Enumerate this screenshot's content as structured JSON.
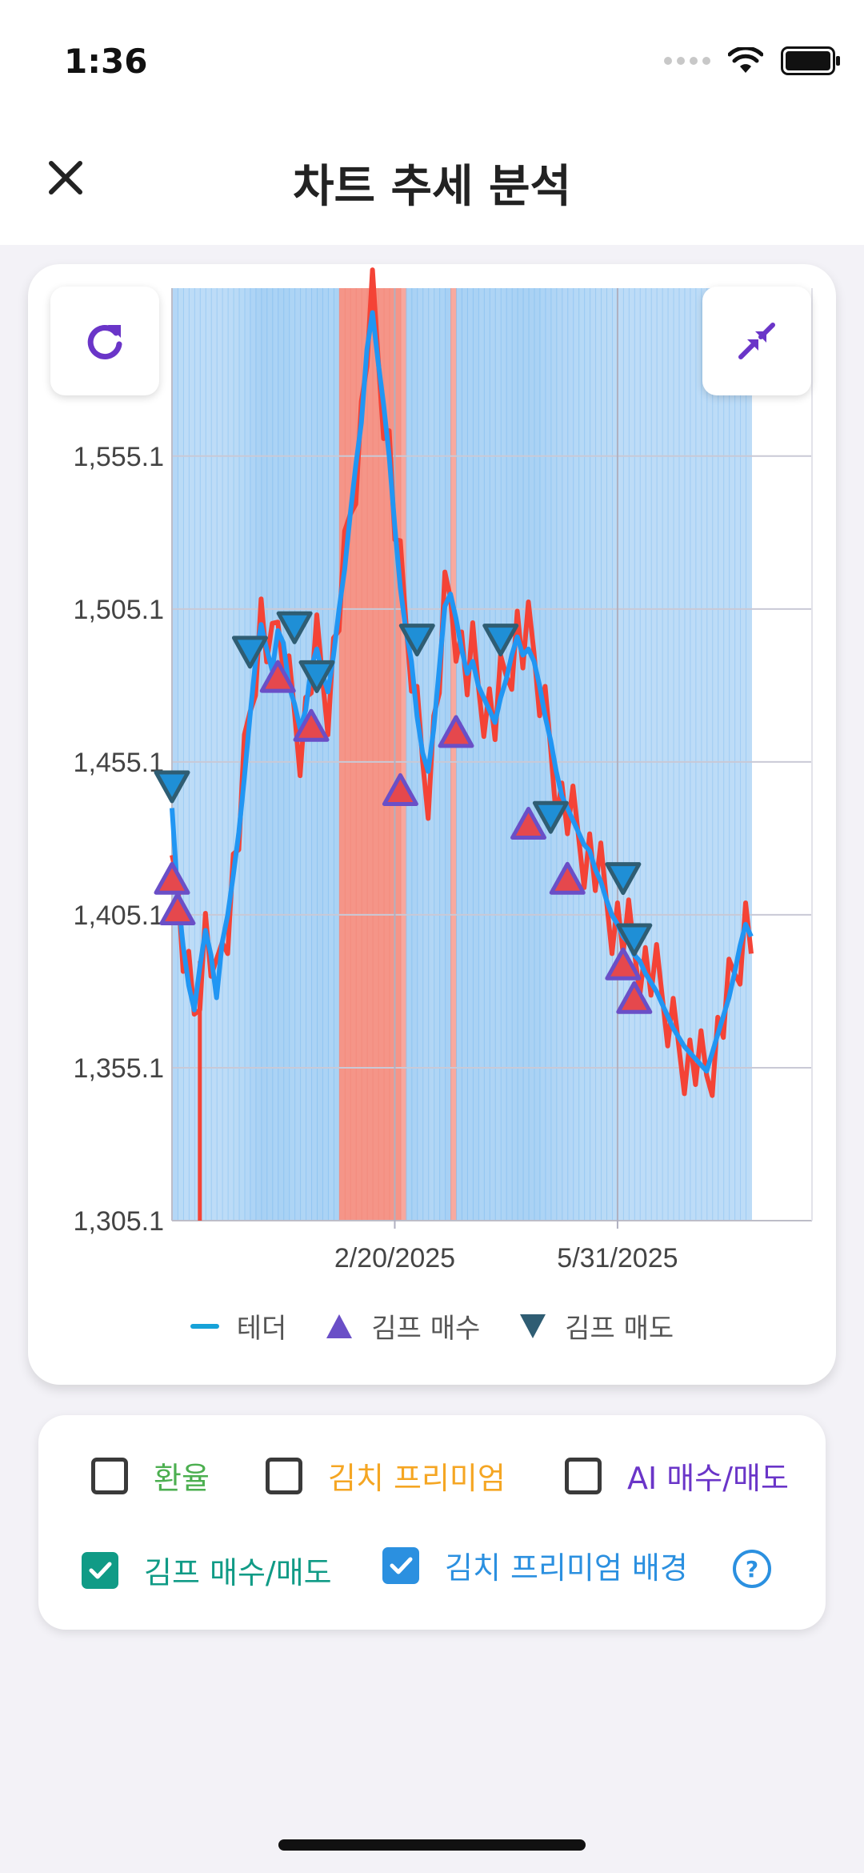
{
  "status_bar": {
    "time": "1:36"
  },
  "header": {
    "title": "차트 추세 분석",
    "close_icon": "close-icon"
  },
  "chart_controls": {
    "refresh_icon": "refresh-icon",
    "collapse_icon": "collapse-icon"
  },
  "colors": {
    "tether_line": "#2196f3",
    "premium_line": "#f44336",
    "buy_marker": "#6a4fc7",
    "sell_marker": "#2f5d73",
    "bg_high": "#f48a7c",
    "bg_low": "#86bff0",
    "accent": "#6a35c8"
  },
  "chart_data": {
    "type": "line",
    "y_ticks": [
      "1,305.1",
      "1,355.1",
      "1,405.1",
      "1,455.1",
      "1,505.1",
      "1,555.1"
    ],
    "ylim": [
      1305.1,
      1610
    ],
    "x_ticks": [
      "2/20/2025",
      "5/31/2025"
    ],
    "x_tick_index": [
      40,
      80
    ],
    "series": [
      {
        "name": "테더",
        "values": [
          1440,
          1412,
          1395,
          1382,
          1374,
          1388,
          1400,
          1392,
          1378,
          1396,
          1405,
          1418,
          1432,
          1450,
          1470,
          1488,
          1500,
          1492,
          1485,
          1498,
          1494,
          1480,
          1474,
          1466,
          1472,
          1486,
          1492,
          1484,
          1478,
          1490,
          1505,
          1518,
          1536,
          1552,
          1566,
          1590,
          1602,
          1586,
          1572,
          1555,
          1532,
          1512,
          1498,
          1488,
          1470,
          1458,
          1452,
          1466,
          1486,
          1506,
          1510,
          1502,
          1492,
          1484,
          1488,
          1480,
          1476,
          1472,
          1468,
          1476,
          1482,
          1490,
          1496,
          1490,
          1492,
          1488,
          1480,
          1470,
          1462,
          1452,
          1444,
          1440,
          1436,
          1432,
          1428,
          1426,
          1420,
          1416,
          1410,
          1405,
          1402,
          1398,
          1396,
          1392,
          1390,
          1386,
          1383,
          1380,
          1376,
          1372,
          1368,
          1365,
          1362,
          1360,
          1358,
          1356,
          1354,
          1360,
          1366,
          1372,
          1378,
          1386,
          1395,
          1402,
          1398
        ]
      }
    ],
    "buy_signals_index": [
      0,
      1,
      19,
      25,
      41,
      51,
      64,
      71,
      81,
      83
    ],
    "buy_signals_value": [
      1416,
      1406,
      1482,
      1466,
      1445,
      1464,
      1434,
      1416,
      1388,
      1377
    ],
    "sell_signals_index": [
      0,
      14,
      22,
      26,
      44,
      59,
      68,
      81,
      83
    ],
    "sell_signals_value": [
      1448,
      1492,
      1500,
      1484,
      1496,
      1496,
      1438,
      1418,
      1398
    ]
  },
  "legend": {
    "tether": "테더",
    "gimp_buy": "김프 매수",
    "gimp_sell": "김프 매도"
  },
  "options": {
    "exchange_rate": {
      "label": "환율",
      "checked": false,
      "color": "#4caf50"
    },
    "kimchi_premium": {
      "label": "김치 프리미엄",
      "checked": false,
      "color": "#f5a623"
    },
    "ai_trade": {
      "label": "AI 매수/매도",
      "checked": false,
      "color": "#6a35c8"
    },
    "gimp_trade": {
      "label": "김프 매수/매도",
      "checked": true,
      "color": "#109b86"
    },
    "kimchi_bg": {
      "label": "김치 프리미엄 배경",
      "checked": true,
      "color": "#2b90e0"
    },
    "help_icon": "help-icon"
  }
}
